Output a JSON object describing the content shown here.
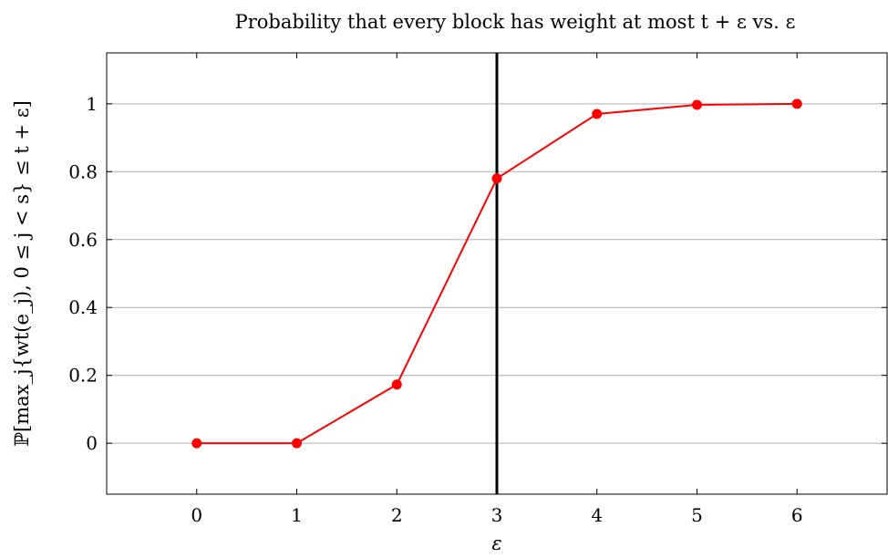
{
  "chart_data": {
    "type": "line",
    "title": "Probability that every block has weight at most t + ε vs. ε",
    "xlabel": "ε",
    "ylabel": "ℙ[max_j{wt(e_j), 0 ≤ j < s} ≤ t + ε]",
    "x": [
      0,
      1,
      2,
      3,
      4,
      5,
      6
    ],
    "series": [
      {
        "values": [
          0,
          0,
          0.173,
          0.78,
          0.97,
          0.997,
          1.0
        ],
        "color": "#ff0000"
      }
    ],
    "xlim": [
      -0.9,
      6.9
    ],
    "ylim": [
      -0.15,
      1.15
    ],
    "xticks": [
      "0",
      "1",
      "2",
      "3",
      "4",
      "5",
      "6"
    ],
    "yticks": [
      "0",
      "0.2",
      "0.4",
      "0.6",
      "0.8",
      "1"
    ],
    "ytick_values": [
      0,
      0.2,
      0.4,
      0.6,
      0.8,
      1
    ],
    "vertical_line_x": 3,
    "grid": "horizontal major",
    "grid_color": "#b0b0b0",
    "line_color": "#ff0000",
    "vline_color": "#000000"
  }
}
